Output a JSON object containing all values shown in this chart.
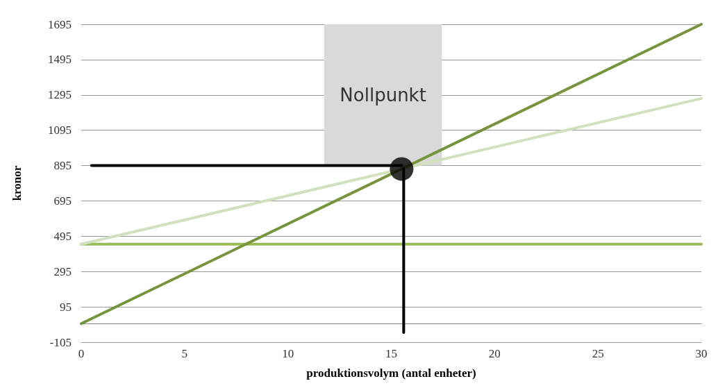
{
  "chart_data": {
    "type": "line",
    "xlabel": "produktionsvolym (antal enheter)",
    "ylabel": "kronor",
    "xlim": [
      0,
      30
    ],
    "xticks": [
      0,
      5,
      10,
      15,
      20,
      25,
      30
    ],
    "ylim": [
      -105,
      1695
    ],
    "yticks": [
      -105,
      95,
      295,
      495,
      695,
      895,
      1095,
      1295,
      1495,
      1695
    ],
    "grid": "y",
    "marker": "none",
    "line_style": "solid",
    "series": [
      {
        "color": "#9bbb59",
        "x": [
          0,
          30
        ],
        "values": [
          450,
          450
        ]
      },
      {
        "color": "#d3e0bd",
        "x": [
          0,
          30
        ],
        "values": [
          450,
          1275
        ]
      },
      {
        "color": "#77933c",
        "x": [
          0,
          30
        ],
        "values": [
          0,
          1695
        ]
      },
      {
        "color": "#000000",
        "x": [
          0.5,
          15.5
        ],
        "values": [
          895,
          895
        ]
      },
      {
        "color": "#000000",
        "x": [
          15.6,
          15.6
        ],
        "values": [
          876,
          -50
        ]
      },
      {
        "type": "scatter",
        "marker": "circle",
        "color": "#000000",
        "x": [
          15.5
        ],
        "values": [
          876
        ]
      }
    ],
    "bands": [
      {
        "axis": "x",
        "from": 11.75,
        "to": 17.45,
        "label": "Nollpunkt",
        "color": "#d9d9d9"
      }
    ]
  }
}
